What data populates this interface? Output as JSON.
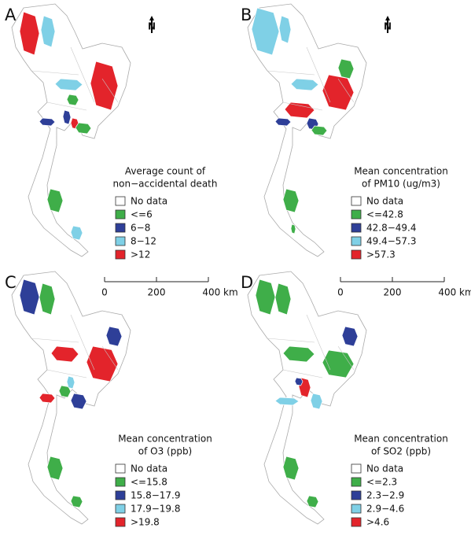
{
  "panels": [
    {
      "letter": "A",
      "north": "N",
      "legend_title": [
        "Average count of",
        "non−accidental death"
      ],
      "legend_items": [
        "No data",
        "<=6",
        "6−8",
        "8−12",
        ">12"
      ]
    },
    {
      "letter": "B",
      "north": "N",
      "legend_title": [
        "Mean concentration",
        "of PM10 (ug/m3)"
      ],
      "legend_items": [
        "No data",
        "<=42.8",
        "42.8−49.4",
        "49.4−57.3",
        ">57.3"
      ]
    },
    {
      "letter": "C",
      "scale_bar": [
        "0",
        "200",
        "400 km"
      ],
      "legend_title": [
        "Mean concentration",
        "of O3 (ppb)"
      ],
      "legend_items": [
        "No data",
        "<=15.8",
        "15.8−17.9",
        "17.9−19.8",
        ">19.8"
      ]
    },
    {
      "letter": "D",
      "scale_bar": [
        "0",
        "200",
        "400 km"
      ],
      "legend_title": [
        "Mean concentration",
        "of SO2 (ppb)"
      ],
      "legend_items": [
        "No data",
        "<=2.3",
        "2.3−2.9",
        "2.9−4.6",
        ">4.6"
      ]
    }
  ]
}
